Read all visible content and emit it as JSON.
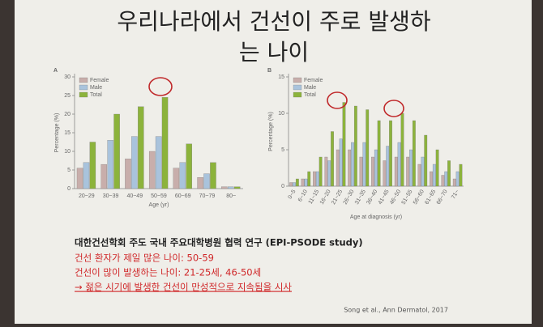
{
  "title_lines": [
    "우리나라에서 건선이 주로 발생하",
    "는 나이"
  ],
  "body": [
    "대한건선학회 주도 국내 주요대학병원 협력 연구 (EPI-PSODE study)",
    "건선 환자가 제일 많은 나이: 50-59",
    "건선이 많이 발생하는 나이: 21-25세, 46-50세",
    "→ 젊은 시기에 발생한 건선이 만성적으로 지속됨을 시사"
  ],
  "citation": "Song et al., Ann Dermatol, 2017",
  "chart_data": [
    {
      "type": "bar",
      "panel": "A",
      "x_label": "Age (yr)",
      "y_label": "Percentage (%)",
      "categories": [
        "20~29",
        "30~39",
        "40~49",
        "50~59",
        "60~69",
        "70~79",
        "80~"
      ],
      "series": [
        {
          "name": "Female",
          "color": "#c8aeab",
          "values": [
            5.5,
            6.5,
            8,
            10,
            5.5,
            3,
            0.5
          ]
        },
        {
          "name": "Male",
          "color": "#a9c3dc",
          "values": [
            7,
            13,
            14,
            14,
            7,
            4,
            0.5
          ]
        },
        {
          "name": "Total",
          "color": "#8cb33b",
          "values": [
            12.5,
            20,
            22,
            24.5,
            12,
            7,
            0.5
          ]
        }
      ],
      "ylim": [
        0,
        30
      ],
      "yticks": [
        0,
        5,
        10,
        15,
        20,
        25,
        30
      ]
    },
    {
      "type": "bar",
      "panel": "B",
      "x_label": "Age at diagnosis (yr)",
      "y_label": "Percentage (%)",
      "categories": [
        "0~5",
        "6~10",
        "11~15",
        "16~20",
        "21~25",
        "26~30",
        "31~35",
        "36~40",
        "41~45",
        "46~50",
        "51~55",
        "56~60",
        "61~65",
        "66~70",
        "71~"
      ],
      "series": [
        {
          "name": "Female",
          "color": "#c8aeab",
          "values": [
            0.5,
            1,
            2,
            4,
            5,
            5,
            4,
            4,
            3.5,
            4,
            4,
            3,
            2,
            1.5,
            1
          ]
        },
        {
          "name": "Male",
          "color": "#a9c3dc",
          "values": [
            0.5,
            1,
            2,
            3.5,
            6.5,
            6,
            6,
            5,
            5.5,
            6,
            5,
            4,
            3,
            2,
            2
          ]
        },
        {
          "name": "Total",
          "color": "#8cb33b",
          "values": [
            1,
            2,
            4,
            7.5,
            11.5,
            11,
            10.5,
            9,
            9,
            10,
            9,
            7,
            5,
            3.5,
            3
          ]
        }
      ],
      "ylim": [
        0,
        15
      ],
      "yticks": [
        0,
        5,
        10,
        15
      ]
    }
  ]
}
